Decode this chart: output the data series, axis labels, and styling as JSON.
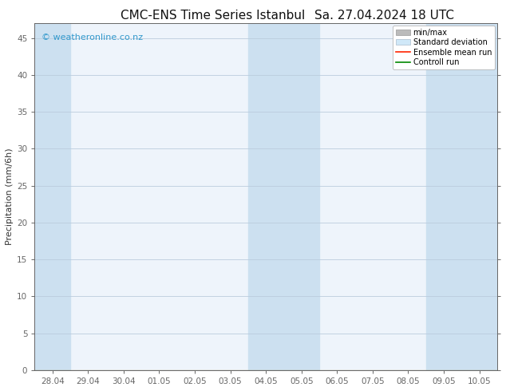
{
  "title": "CMC-ENS Time Series Istanbul",
  "title2": "Sa. 27.04.2024 18 UTC",
  "ylabel": "Precipitation (mm/6h)",
  "background_color": "#ffffff",
  "plot_bg_color": "#eef4fb",
  "ylim": [
    0,
    47
  ],
  "yticks": [
    0,
    5,
    10,
    15,
    20,
    25,
    30,
    35,
    40,
    45
  ],
  "xtick_labels": [
    "28.04",
    "29.04",
    "30.04",
    "01.05",
    "02.05",
    "03.05",
    "04.05",
    "05.05",
    "06.05",
    "07.05",
    "08.05",
    "09.05",
    "10.05"
  ],
  "shaded_indices": [
    0,
    6,
    7,
    11,
    12
  ],
  "band_color": "#cce0f0",
  "watermark": "© weatheronline.co.nz",
  "watermark_color": "#3399cc",
  "minmax_color": "#aaaaaa",
  "std_color": "#cce0f0",
  "ensemble_color": "#ff2200",
  "control_color": "#008800",
  "title_fontsize": 11,
  "axis_fontsize": 8,
  "tick_fontsize": 7.5,
  "legend_fontsize": 7,
  "grid_color": "#bbccdd",
  "spine_color": "#666666"
}
